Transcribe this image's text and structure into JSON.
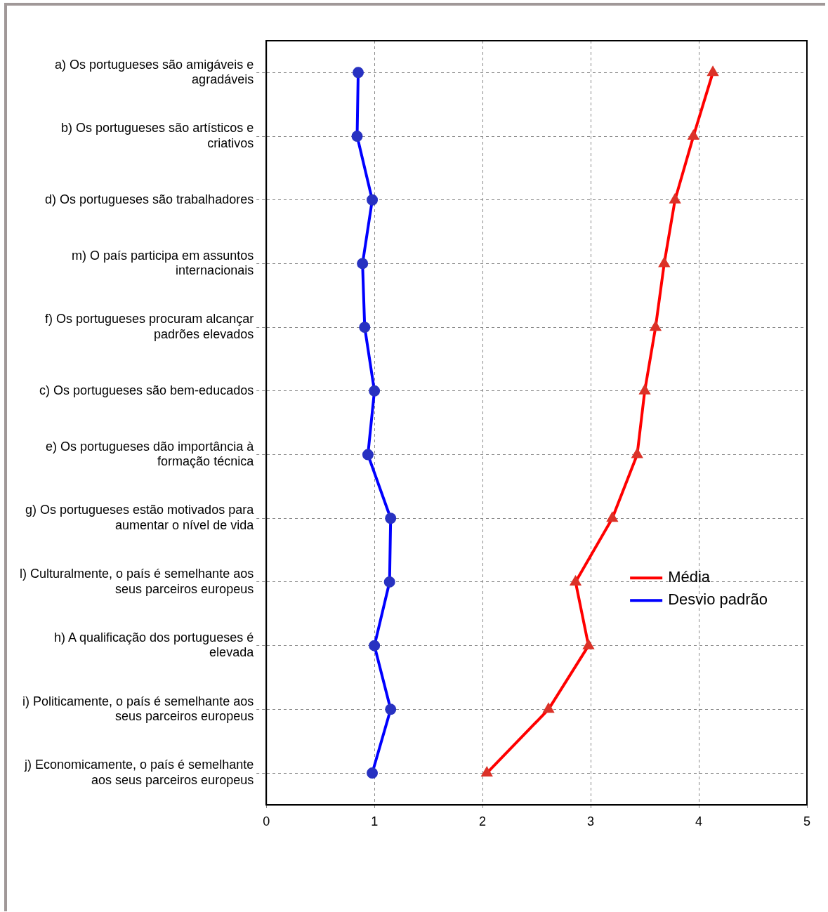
{
  "chart_data": {
    "type": "line",
    "orientation": "horizontal",
    "categories": [
      "a) Os portugueses são amigáveis e agradáveis",
      "b) Os portugueses são artísticos e criativos",
      "d) Os portugueses são trabalhadores",
      "m) O país participa em assuntos internacionais",
      "f) Os portugueses procuram alcançar padrões elevados",
      "c) Os portugueses são bem-educados",
      "e) Os portugueses dão importância à formação técnica",
      "g) Os portugueses estão motivados para aumentar o nível de vida",
      "l) Culturalmente, o país é semelhante aos seus parceiros europeus",
      "h) A qualificação dos portugueses é elevada",
      "i) Politicamente, o país é semelhante aos seus parceiros europeus",
      "j) Economicamente, o país é semelhante aos seus parceiros europeus"
    ],
    "series": [
      {
        "name": "Média",
        "color": "#ff0000",
        "marker": "triangle",
        "values": [
          4.13,
          3.95,
          3.78,
          3.68,
          3.6,
          3.5,
          3.43,
          3.2,
          2.86,
          2.98,
          2.61,
          2.04
        ]
      },
      {
        "name": "Desvio padrão",
        "color": "#0000ff",
        "marker": "circle",
        "values": [
          0.85,
          0.84,
          0.98,
          0.89,
          0.91,
          1.0,
          0.94,
          1.15,
          1.14,
          1.0,
          1.15,
          0.98
        ]
      }
    ],
    "xlim": [
      0,
      5
    ],
    "xticks": [
      0,
      1,
      2,
      3,
      4,
      5
    ],
    "grid": true,
    "line_style": "solid",
    "legend": "right"
  }
}
